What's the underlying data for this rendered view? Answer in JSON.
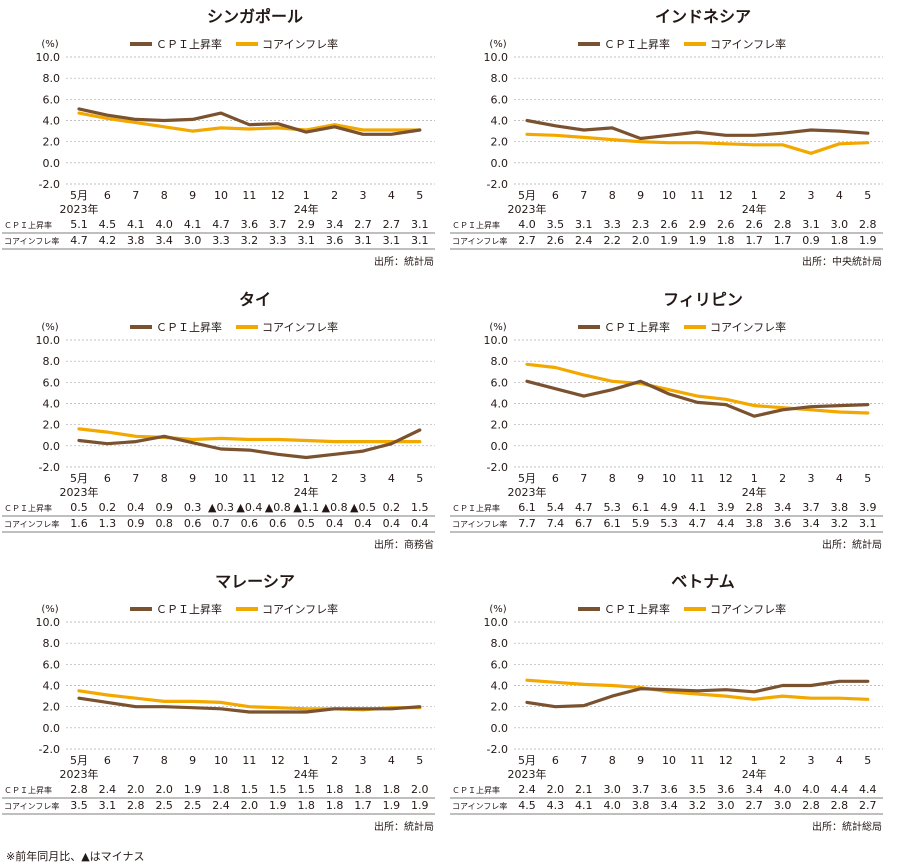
{
  "legend": {
    "cpi": "ＣＰＩ上昇率",
    "core": "コアインフレ率"
  },
  "colors": {
    "cpi": "#7a5230",
    "core": "#f3a800"
  },
  "footnote": "※前年同月比、▲はマイナス",
  "chart_data": [
    {
      "type": "line",
      "title": "シンガポール",
      "ylabel": "(%)",
      "ylim": [
        -2.0,
        10.0
      ],
      "yticks": [
        "10.0",
        "8.0",
        "6.0",
        "4.0",
        "2.0",
        "0.0",
        "-2.0"
      ],
      "categories": [
        "5月",
        "6",
        "7",
        "8",
        "9",
        "10",
        "11",
        "12",
        "1",
        "2",
        "3",
        "4",
        "5"
      ],
      "year_labels": [
        "2023年",
        "24年"
      ],
      "series": [
        {
          "name": "ＣＰＩ上昇率",
          "row_label": "ＣＰＩ上昇率",
          "values": [
            5.1,
            4.5,
            4.1,
            4.0,
            4.1,
            4.7,
            3.6,
            3.7,
            2.9,
            3.4,
            2.7,
            2.7,
            3.1
          ],
          "labels": [
            "5.1",
            "4.5",
            "4.1",
            "4.0",
            "4.1",
            "4.7",
            "3.6",
            "3.7",
            "2.9",
            "3.4",
            "2.7",
            "2.7",
            "3.1"
          ]
        },
        {
          "name": "コアインフレ率",
          "row_label": "コアインフレ率",
          "values": [
            4.7,
            4.2,
            3.8,
            3.4,
            3.0,
            3.3,
            3.2,
            3.3,
            3.1,
            3.6,
            3.1,
            3.1,
            3.1
          ],
          "labels": [
            "4.7",
            "4.2",
            "3.8",
            "3.4",
            "3.0",
            "3.3",
            "3.2",
            "3.3",
            "3.1",
            "3.6",
            "3.1",
            "3.1",
            "3.1"
          ]
        }
      ],
      "source": "出所：統計局"
    },
    {
      "type": "line",
      "title": "インドネシア",
      "ylabel": "(%)",
      "ylim": [
        -2.0,
        10.0
      ],
      "yticks": [
        "10.0",
        "8.0",
        "6.0",
        "4.0",
        "2.0",
        "0.0",
        "-2.0"
      ],
      "categories": [
        "5月",
        "6",
        "7",
        "8",
        "9",
        "10",
        "11",
        "12",
        "1",
        "2",
        "3",
        "4",
        "5"
      ],
      "year_labels": [
        "2023年",
        "24年"
      ],
      "series": [
        {
          "name": "ＣＰＩ上昇率",
          "row_label": "ＣＰＩ上昇率",
          "values": [
            4.0,
            3.5,
            3.1,
            3.3,
            2.3,
            2.6,
            2.9,
            2.6,
            2.6,
            2.8,
            3.1,
            3.0,
            2.8
          ],
          "labels": [
            "4.0",
            "3.5",
            "3.1",
            "3.3",
            "2.3",
            "2.6",
            "2.9",
            "2.6",
            "2.6",
            "2.8",
            "3.1",
            "3.0",
            "2.8"
          ]
        },
        {
          "name": "コアインフレ率",
          "row_label": "コアインフレ率",
          "values": [
            2.7,
            2.6,
            2.4,
            2.2,
            2.0,
            1.9,
            1.9,
            1.8,
            1.7,
            1.7,
            0.9,
            1.8,
            1.9
          ],
          "labels": [
            "2.7",
            "2.6",
            "2.4",
            "2.2",
            "2.0",
            "1.9",
            "1.9",
            "1.8",
            "1.7",
            "1.7",
            "0.9",
            "1.8",
            "1.9"
          ]
        }
      ],
      "source": "出所：中央統計局"
    },
    {
      "type": "line",
      "title": "タイ",
      "ylabel": "(%)",
      "ylim": [
        -2.0,
        10.0
      ],
      "yticks": [
        "10.0",
        "8.0",
        "6.0",
        "4.0",
        "2.0",
        "0.0",
        "-2.0"
      ],
      "categories": [
        "5月",
        "6",
        "7",
        "8",
        "9",
        "10",
        "11",
        "12",
        "1",
        "2",
        "3",
        "4",
        "5"
      ],
      "year_labels": [
        "2023年",
        "24年"
      ],
      "series": [
        {
          "name": "ＣＰＩ上昇率",
          "row_label": "ＣＰＩ上昇率",
          "values": [
            0.5,
            0.2,
            0.4,
            0.9,
            0.3,
            -0.3,
            -0.4,
            -0.8,
            -1.1,
            -0.8,
            -0.5,
            0.2,
            1.5
          ],
          "labels": [
            "0.5",
            "0.2",
            "0.4",
            "0.9",
            "0.3",
            "▲0.3",
            "▲0.4",
            "▲0.8",
            "▲1.1",
            "▲0.8",
            "▲0.5",
            "0.2",
            "1.5"
          ]
        },
        {
          "name": "コアインフレ率",
          "row_label": "コアインフレ率",
          "values": [
            1.6,
            1.3,
            0.9,
            0.8,
            0.6,
            0.7,
            0.6,
            0.6,
            0.5,
            0.4,
            0.4,
            0.4,
            0.4
          ],
          "labels": [
            "1.6",
            "1.3",
            "0.9",
            "0.8",
            "0.6",
            "0.7",
            "0.6",
            "0.6",
            "0.5",
            "0.4",
            "0.4",
            "0.4",
            "0.4"
          ]
        }
      ],
      "source": "出所：商務省"
    },
    {
      "type": "line",
      "title": "フィリピン",
      "ylabel": "(%)",
      "ylim": [
        -2.0,
        10.0
      ],
      "yticks": [
        "10.0",
        "8.0",
        "6.0",
        "4.0",
        "2.0",
        "0.0",
        "-2.0"
      ],
      "categories": [
        "5月",
        "6",
        "7",
        "8",
        "9",
        "10",
        "11",
        "12",
        "1",
        "2",
        "3",
        "4",
        "5"
      ],
      "year_labels": [
        "2023年",
        "24年"
      ],
      "series": [
        {
          "name": "ＣＰＩ上昇率",
          "row_label": "ＣＰＩ上昇率",
          "values": [
            6.1,
            5.4,
            4.7,
            5.3,
            6.1,
            4.9,
            4.1,
            3.9,
            2.8,
            3.4,
            3.7,
            3.8,
            3.9
          ],
          "labels": [
            "6.1",
            "5.4",
            "4.7",
            "5.3",
            "6.1",
            "4.9",
            "4.1",
            "3.9",
            "2.8",
            "3.4",
            "3.7",
            "3.8",
            "3.9"
          ]
        },
        {
          "name": "コアインフレ率",
          "row_label": "コアインフレ率",
          "values": [
            7.7,
            7.4,
            6.7,
            6.1,
            5.9,
            5.3,
            4.7,
            4.4,
            3.8,
            3.6,
            3.4,
            3.2,
            3.1
          ],
          "labels": [
            "7.7",
            "7.4",
            "6.7",
            "6.1",
            "5.9",
            "5.3",
            "4.7",
            "4.4",
            "3.8",
            "3.6",
            "3.4",
            "3.2",
            "3.1"
          ]
        }
      ],
      "source": "出所：統計局"
    },
    {
      "type": "line",
      "title": "マレーシア",
      "ylabel": "(%)",
      "ylim": [
        -2.0,
        10.0
      ],
      "yticks": [
        "10.0",
        "8.0",
        "6.0",
        "4.0",
        "2.0",
        "0.0",
        "-2.0"
      ],
      "categories": [
        "5月",
        "6",
        "7",
        "8",
        "9",
        "10",
        "11",
        "12",
        "1",
        "2",
        "3",
        "4",
        "5"
      ],
      "year_labels": [
        "2023年",
        "24年"
      ],
      "series": [
        {
          "name": "ＣＰＩ上昇率",
          "row_label": "ＣＰＩ上昇率",
          "values": [
            2.8,
            2.4,
            2.0,
            2.0,
            1.9,
            1.8,
            1.5,
            1.5,
            1.5,
            1.8,
            1.8,
            1.8,
            2.0
          ],
          "labels": [
            "2.8",
            "2.4",
            "2.0",
            "2.0",
            "1.9",
            "1.8",
            "1.5",
            "1.5",
            "1.5",
            "1.8",
            "1.8",
            "1.8",
            "2.0"
          ]
        },
        {
          "name": "コアインフレ率",
          "row_label": "コアインフレ率",
          "values": [
            3.5,
            3.1,
            2.8,
            2.5,
            2.5,
            2.4,
            2.0,
            1.9,
            1.8,
            1.8,
            1.7,
            1.9,
            1.9
          ],
          "labels": [
            "3.5",
            "3.1",
            "2.8",
            "2.5",
            "2.5",
            "2.4",
            "2.0",
            "1.9",
            "1.8",
            "1.8",
            "1.7",
            "1.9",
            "1.9"
          ]
        }
      ],
      "source": "出所：統計局"
    },
    {
      "type": "line",
      "title": "ベトナム",
      "ylabel": "(%)",
      "ylim": [
        -2.0,
        10.0
      ],
      "yticks": [
        "10.0",
        "8.0",
        "6.0",
        "4.0",
        "2.0",
        "0.0",
        "-2.0"
      ],
      "categories": [
        "5月",
        "6",
        "7",
        "8",
        "9",
        "10",
        "11",
        "12",
        "1",
        "2",
        "3",
        "4",
        "5"
      ],
      "year_labels": [
        "2023年",
        "24年"
      ],
      "series": [
        {
          "name": "ＣＰＩ上昇率",
          "row_label": "ＣＰＩ上昇率",
          "values": [
            2.4,
            2.0,
            2.1,
            3.0,
            3.7,
            3.6,
            3.5,
            3.6,
            3.4,
            4.0,
            4.0,
            4.4,
            4.4
          ],
          "labels": [
            "2.4",
            "2.0",
            "2.1",
            "3.0",
            "3.7",
            "3.6",
            "3.5",
            "3.6",
            "3.4",
            "4.0",
            "4.0",
            "4.4",
            "4.4"
          ]
        },
        {
          "name": "コアインフレ率",
          "row_label": "コアインフレ率",
          "values": [
            4.5,
            4.3,
            4.1,
            4.0,
            3.8,
            3.4,
            3.2,
            3.0,
            2.7,
            3.0,
            2.8,
            2.8,
            2.7
          ],
          "labels": [
            "4.5",
            "4.3",
            "4.1",
            "4.0",
            "3.8",
            "3.4",
            "3.2",
            "3.0",
            "2.7",
            "3.0",
            "2.8",
            "2.8",
            "2.7"
          ]
        }
      ],
      "source": "出所：統計総局"
    }
  ]
}
